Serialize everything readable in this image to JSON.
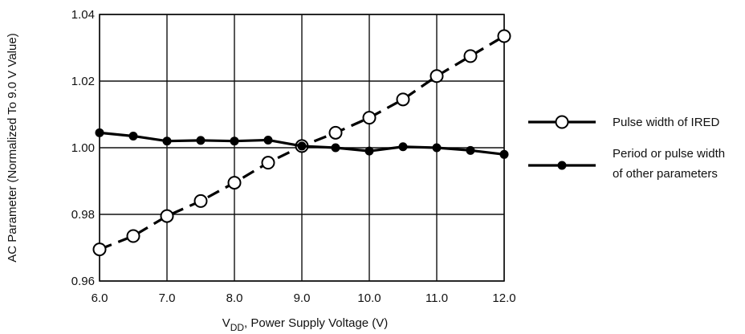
{
  "chart_data": {
    "type": "line",
    "title": "",
    "xlabel": "V",
    "xlabel_subscript": "DD",
    "xlabel_rest": ", Power Supply Voltage (V)",
    "ylabel": "AC Parameter (Normalized To 9.0 V Value)",
    "xlim": [
      6.0,
      12.0
    ],
    "ylim": [
      0.96,
      1.04
    ],
    "x_ticks": [
      "6.0",
      "7.0",
      "8.0",
      "9.0",
      "10.0",
      "11.0",
      "12.0"
    ],
    "y_ticks": [
      "0.96",
      "0.98",
      "1.00",
      "1.02",
      "1.04"
    ],
    "grid": true,
    "legend_position": "right",
    "series": [
      {
        "name": "Pulse width of IRED",
        "marker": "open-circle",
        "line_style": "dashed",
        "color": "#000000",
        "x": [
          6.0,
          6.5,
          7.0,
          7.5,
          8.0,
          8.5,
          9.0,
          9.5,
          10.0,
          10.5,
          11.0,
          11.5,
          12.0
        ],
        "y": [
          0.9695,
          0.9735,
          0.9795,
          0.984,
          0.9895,
          0.9955,
          1.0005,
          1.0045,
          1.009,
          1.0145,
          1.0215,
          1.0275,
          1.0335
        ]
      },
      {
        "name_lines": [
          "Period or pulse width",
          "of other parameters"
        ],
        "marker": "filled-circle",
        "line_style": "solid",
        "color": "#000000",
        "x": [
          6.0,
          6.5,
          7.0,
          7.5,
          8.0,
          8.5,
          9.0,
          9.5,
          10.0,
          10.5,
          11.0,
          11.5,
          12.0
        ],
        "y": [
          1.0045,
          1.0035,
          1.002,
          1.0022,
          1.002,
          1.0023,
          1.0005,
          1.0,
          0.999,
          1.0003,
          1.0,
          0.9992,
          0.998
        ]
      }
    ]
  }
}
